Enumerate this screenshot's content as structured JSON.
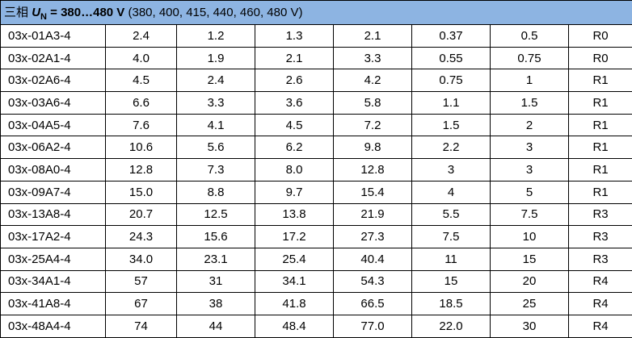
{
  "header": {
    "prefix": "三相",
    "symbol": "U",
    "subscript": "N",
    "range": "= 380…480 V",
    "values": "(380, 400, 415, 440, 460, 480 V)"
  },
  "table": {
    "rows": [
      [
        "03x-01A3-4",
        "2.4",
        "1.2",
        "1.3",
        "2.1",
        "0.37",
        "0.5",
        "R0"
      ],
      [
        "03x-02A1-4",
        "4.0",
        "1.9",
        "2.1",
        "3.3",
        "0.55",
        "0.75",
        "R0"
      ],
      [
        "03x-02A6-4",
        "4.5",
        "2.4",
        "2.6",
        "4.2",
        "0.75",
        "1",
        "R1"
      ],
      [
        "03x-03A6-4",
        "6.6",
        "3.3",
        "3.6",
        "5.8",
        "1.1",
        "1.5",
        "R1"
      ],
      [
        "03x-04A5-4",
        "7.6",
        "4.1",
        "4.5",
        "7.2",
        "1.5",
        "2",
        "R1"
      ],
      [
        "03x-06A2-4",
        "10.6",
        "5.6",
        "6.2",
        "9.8",
        "2.2",
        "3",
        "R1"
      ],
      [
        "03x-08A0-4",
        "12.8",
        "7.3",
        "8.0",
        "12.8",
        "3",
        "3",
        "R1"
      ],
      [
        "03x-09A7-4",
        "15.0",
        "8.8",
        "9.7",
        "15.4",
        "4",
        "5",
        "R1"
      ],
      [
        "03x-13A8-4",
        "20.7",
        "12.5",
        "13.8",
        "21.9",
        "5.5",
        "7.5",
        "R3"
      ],
      [
        "03x-17A2-4",
        "24.3",
        "15.6",
        "17.2",
        "27.3",
        "7.5",
        "10",
        "R3"
      ],
      [
        "03x-25A4-4",
        "34.0",
        "23.1",
        "25.4",
        "40.4",
        "11",
        "15",
        "R3"
      ],
      [
        "03x-34A1-4",
        "57",
        "31",
        "34.1",
        "54.3",
        "15",
        "20",
        "R4"
      ],
      [
        "03x-41A8-4",
        "67",
        "38",
        "41.8",
        "66.5",
        "18.5",
        "25",
        "R4"
      ],
      [
        "03x-48A4-4",
        "74",
        "44",
        "48.4",
        "77.0",
        "22.0",
        "30",
        "R4"
      ]
    ]
  }
}
